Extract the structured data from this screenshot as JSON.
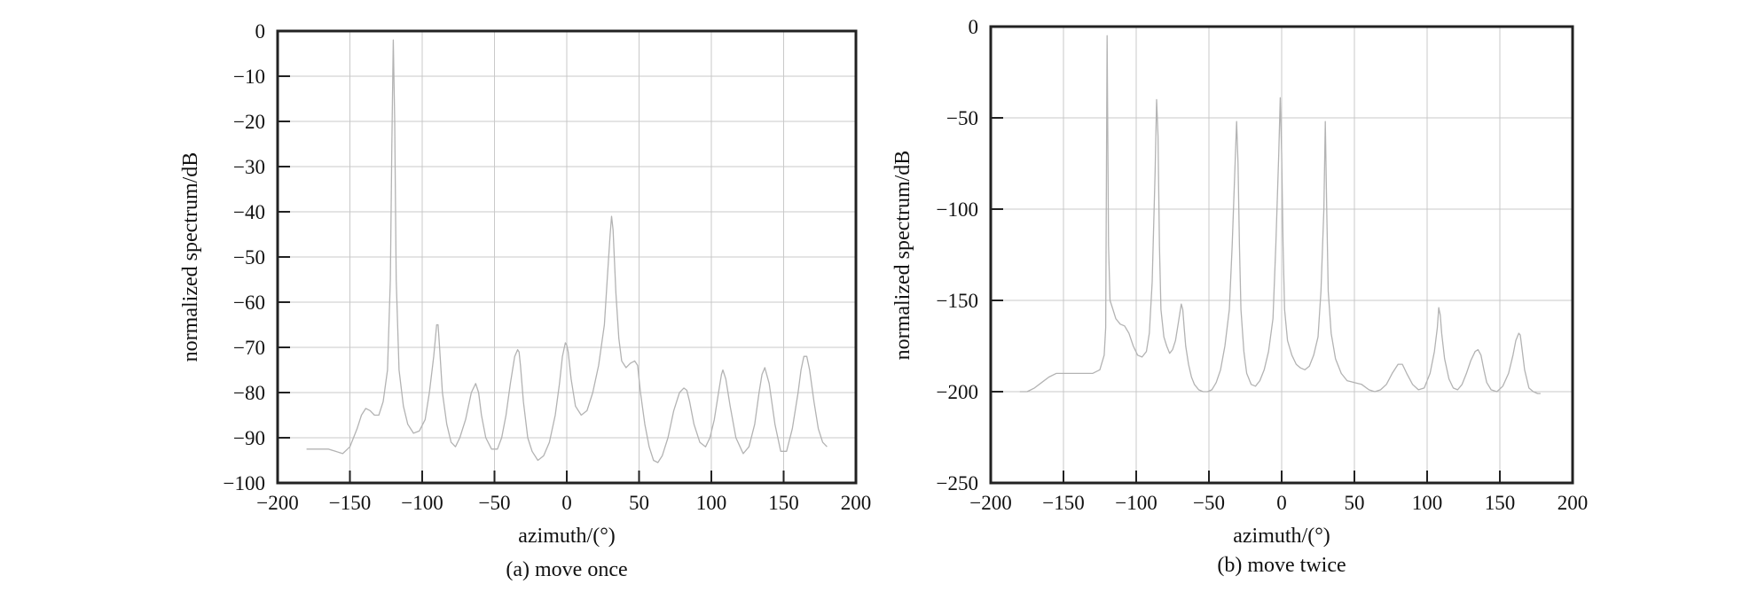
{
  "chart_data": [
    {
      "type": "line",
      "title": "",
      "caption": "(a) move once",
      "xlabel": "azimuth/(°)",
      "ylabel": "normalized spectrum/dB",
      "xlim": [
        -200,
        200
      ],
      "ylim": [
        -100,
        0
      ],
      "xticks": [
        -200,
        -150,
        -100,
        -50,
        0,
        50,
        100,
        150,
        200
      ],
      "yticks": [
        0,
        -10,
        -20,
        -30,
        -40,
        -50,
        -60,
        -70,
        -80,
        -90,
        -100
      ],
      "grid": true,
      "line_color": "#b3b3b3",
      "series": [
        {
          "x": [
            -180,
            -170,
            -165,
            -160,
            -155,
            -150,
            -145,
            -142,
            -139,
            -136,
            -133,
            -130,
            -127,
            -124,
            -122,
            -121,
            -120,
            -119,
            -118,
            -116,
            -113,
            -110,
            -106,
            -102,
            -98,
            -95,
            -92,
            -90,
            -89,
            -88,
            -86,
            -83,
            -80,
            -77,
            -74,
            -70,
            -66,
            -63,
            -61,
            -59,
            -56,
            -52,
            -48,
            -45,
            -42,
            -39,
            -36,
            -34,
            -33,
            -32,
            -30,
            -27,
            -24,
            -20,
            -16,
            -12,
            -8,
            -5,
            -3,
            -1,
            0,
            1,
            3,
            6,
            10,
            14,
            18,
            22,
            26,
            28,
            30,
            31,
            32,
            34,
            36,
            38,
            41,
            44,
            47,
            49,
            51,
            54,
            57,
            60,
            63,
            66,
            70,
            74,
            78,
            81,
            83,
            85,
            88,
            92,
            96,
            99,
            102,
            105,
            107,
            108,
            110,
            113,
            117,
            122,
            126,
            130,
            133,
            135,
            137,
            140,
            144,
            148,
            152,
            156,
            160,
            162,
            164,
            166,
            168,
            171,
            174,
            177,
            180
          ],
          "y": [
            -92.5,
            -92.5,
            -92.5,
            -93,
            -93.5,
            -92,
            -88,
            -85,
            -83.5,
            -84,
            -85,
            -85,
            -82,
            -75,
            -55,
            -25,
            -2,
            -20,
            -55,
            -75,
            -83,
            -87,
            -89,
            -88.5,
            -86,
            -80,
            -72,
            -65,
            -65,
            -70,
            -80,
            -87,
            -91,
            -92,
            -90,
            -86,
            -80,
            -78,
            -80,
            -85,
            -90,
            -92.5,
            -92.5,
            -90,
            -85,
            -78,
            -72,
            -70.5,
            -71,
            -74,
            -82,
            -90,
            -93,
            -95,
            -94,
            -91,
            -85,
            -78,
            -72,
            -69,
            -69.5,
            -71,
            -77,
            -83,
            -85,
            -84,
            -80,
            -74,
            -65,
            -55,
            -45,
            -41,
            -44,
            -58,
            -68,
            -73,
            -74.5,
            -73.5,
            -73,
            -74,
            -80,
            -87,
            -92,
            -95,
            -95.5,
            -94,
            -90,
            -84,
            -80,
            -79,
            -79.5,
            -82,
            -87,
            -91,
            -92,
            -90,
            -86,
            -80,
            -76,
            -75,
            -77,
            -83,
            -90,
            -93.5,
            -92,
            -87,
            -80,
            -76,
            -74.5,
            -78,
            -87,
            -93,
            -93,
            -88,
            -80,
            -75,
            -72,
            -72,
            -75,
            -82,
            -88,
            -91,
            -92
          ]
        }
      ]
    },
    {
      "type": "line",
      "title": "",
      "caption": "(b) move twice",
      "xlabel": "azimuth/(°)",
      "ylabel": "normalized spectrum/dB",
      "xlim": [
        -200,
        200
      ],
      "ylim": [
        -250,
        0
      ],
      "xticks": [
        -200,
        -150,
        -100,
        -50,
        0,
        50,
        100,
        150,
        200
      ],
      "yticks": [
        0,
        -50,
        -100,
        -150,
        -200,
        -250
      ],
      "grid": true,
      "line_color": "#b3b3b3",
      "series": [
        {
          "x": [
            -180,
            -175,
            -170,
            -165,
            -160,
            -155,
            -150,
            -145,
            -140,
            -135,
            -130,
            -125,
            -122,
            -121,
            -120,
            -119,
            -118,
            -116,
            -114,
            -111,
            -108,
            -105,
            -102,
            -99,
            -96,
            -93,
            -91,
            -89,
            -87,
            -86,
            -85,
            -84,
            -83,
            -81,
            -79,
            -77,
            -75,
            -73,
            -71,
            -69,
            -68,
            -67,
            -66,
            -64,
            -62,
            -60,
            -57,
            -54,
            -51,
            -48,
            -45,
            -42,
            -39,
            -36,
            -34,
            -32,
            -31,
            -30,
            -29,
            -28,
            -26,
            -24,
            -21,
            -18,
            -15,
            -12,
            -9,
            -6,
            -4,
            -2,
            -1,
            0,
            1,
            2,
            4,
            7,
            10,
            13,
            16,
            19,
            22,
            25,
            27,
            29,
            30,
            31,
            32,
            34,
            37,
            41,
            45,
            50,
            55,
            60,
            64,
            68,
            72,
            76,
            80,
            83,
            86,
            90,
            94,
            98,
            102,
            105,
            107,
            108,
            109,
            110,
            112,
            115,
            118,
            121,
            124,
            127,
            130,
            133,
            135,
            137,
            139,
            141,
            144,
            148,
            152,
            156,
            159,
            161,
            163,
            164,
            165,
            167,
            170,
            173,
            176,
            178
          ],
          "y": [
            -200,
            -200,
            -198,
            -195,
            -192,
            -190,
            -190,
            -190,
            -190,
            -190,
            -190,
            -188,
            -180,
            -165,
            -5,
            -120,
            -150,
            -155,
            -160,
            -163,
            -164,
            -168,
            -175,
            -180,
            -181,
            -178,
            -168,
            -140,
            -80,
            -40,
            -60,
            -120,
            -155,
            -170,
            -175,
            -179,
            -177,
            -172,
            -162,
            -152,
            -155,
            -165,
            -175,
            -185,
            -192,
            -196,
            -199,
            -200,
            -200,
            -199,
            -195,
            -188,
            -175,
            -155,
            -120,
            -75,
            -52,
            -75,
            -120,
            -155,
            -178,
            -190,
            -196,
            -197,
            -194,
            -188,
            -178,
            -160,
            -120,
            -70,
            -39,
            -70,
            -120,
            -155,
            -172,
            -180,
            -185,
            -187,
            -188,
            -186,
            -180,
            -170,
            -145,
            -100,
            -52,
            -100,
            -145,
            -168,
            -182,
            -190,
            -194,
            -195,
            -196,
            -199,
            -200,
            -199,
            -196,
            -190,
            -185,
            -185,
            -190,
            -196,
            -199,
            -198,
            -190,
            -178,
            -165,
            -154,
            -158,
            -168,
            -182,
            -193,
            -198,
            -199,
            -196,
            -190,
            -183,
            -178,
            -177,
            -180,
            -188,
            -195,
            -199,
            -200,
            -197,
            -190,
            -180,
            -172,
            -168,
            -169,
            -175,
            -188,
            -198,
            -200,
            -201,
            -201
          ]
        }
      ]
    }
  ]
}
